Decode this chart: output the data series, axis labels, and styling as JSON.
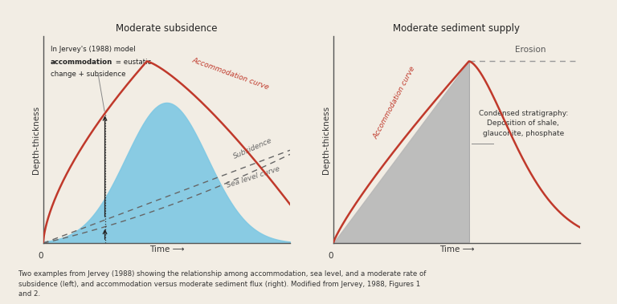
{
  "title_left": "Moderate subsidence",
  "title_right": "Moderate sediment supply",
  "ylabel": "Depth-thickness",
  "xlabel": "Time ⟶",
  "caption": "Two examples from Jervey (1988) showing the relationship among accommodation, sea level, and a moderate rate of\nsubsidence (left), and accommodation versus moderate sediment flux (right). Modified from Jervey, 1988, Figures 1\nand 2.",
  "bg_color": "#f2ede4",
  "curve_color": "#c0392b",
  "subsidence_color": "#666666",
  "sea_level_color": "#666666",
  "fill_color_left": "#7ec8e3",
  "fill_color_right": "#b8b8b8",
  "erosion_dash_color": "#999999",
  "label_accommodation_left": "Accommodation curve",
  "label_subsidence": "Subsidence",
  "label_sea_level": "Sea level curve",
  "label_accommodation_right": "Accommodation curve",
  "label_erosion": "Erosion",
  "label_condensed": "Condensed stratigraphy:\nDeposition of shale,\nglauconite, phosphate"
}
